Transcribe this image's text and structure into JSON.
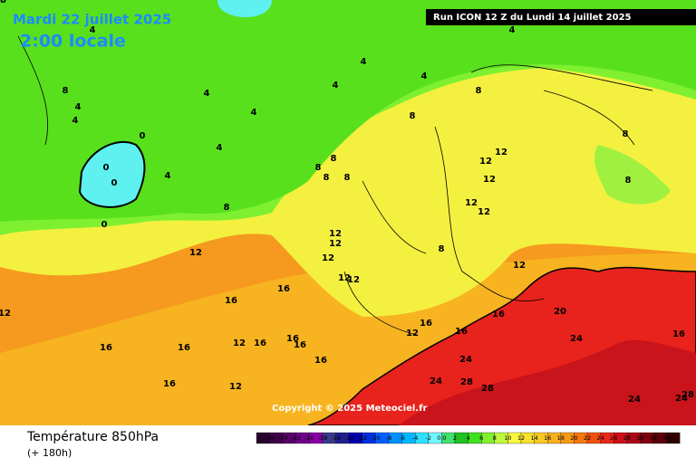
{
  "header": {
    "date": "Mardi 22 juillet 2025",
    "time": "2:00 locale",
    "run": "Run ICON 12 Z du Lundi 14 juillet 2025"
  },
  "map": {
    "contour_labels": [
      4,
      4,
      4,
      4,
      4,
      4,
      4,
      4,
      4,
      4,
      4,
      8,
      0,
      0,
      0,
      0,
      8,
      8,
      8,
      8,
      8,
      8,
      8,
      8,
      8,
      8,
      12,
      12,
      12,
      12,
      12,
      12,
      12,
      12,
      12,
      12,
      12,
      12,
      12,
      12,
      12,
      12,
      16,
      16,
      16,
      16,
      16,
      16,
      16,
      16,
      16,
      16,
      16,
      16,
      16,
      20,
      24,
      24,
      24,
      24,
      24,
      28,
      28,
      28,
      28
    ]
  },
  "copyright": "Copyright © 2025 Meteociel.fr",
  "footer": {
    "title": "Température 850hPa",
    "lead": "(+ 180h)"
  },
  "legend": {
    "labels": [
      -26,
      -24,
      -22,
      -20,
      -18,
      -16,
      -14,
      -12,
      -10,
      -8,
      -6,
      -4,
      -2,
      "0.0",
      2,
      4,
      6,
      8,
      10,
      12,
      14,
      16,
      18,
      20,
      22,
      24,
      26,
      28,
      30,
      32,
      34
    ]
  }
}
